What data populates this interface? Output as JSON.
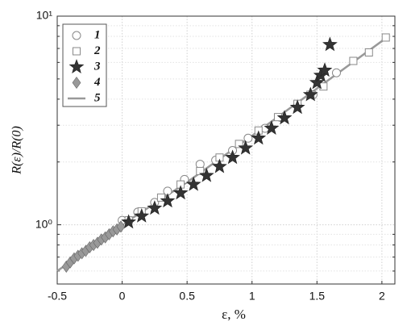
{
  "chart_data": {
    "type": "scatter",
    "x_label": "ε, %",
    "y_label": "R(ε)/R(0)",
    "xlim": [
      -0.5,
      2.1
    ],
    "ylim": [
      0.52,
      10
    ],
    "log_y": true,
    "grid": true,
    "xticks": [
      {
        "value": -0.5,
        "label": "-0.5"
      },
      0,
      0.5,
      1,
      1.5,
      2
    ],
    "yticks": [
      {
        "value": 1,
        "label": "10⁰"
      },
      {
        "value": 10,
        "label": "10¹"
      }
    ],
    "yticks_minor": [
      0.6,
      0.7,
      0.8,
      0.9,
      2,
      3,
      4,
      5,
      6,
      7,
      8,
      9
    ],
    "legend": "upper left",
    "series": [
      {
        "name": "1",
        "marker": "circle",
        "color": "#888888",
        "x": [
          0.0,
          0.12,
          0.25,
          0.35,
          0.48,
          0.6,
          0.72,
          0.85,
          0.97,
          1.1,
          1.22,
          1.35,
          1.47,
          1.65
        ],
        "values": [
          1.05,
          1.15,
          1.28,
          1.45,
          1.65,
          1.95,
          2.04,
          2.27,
          2.6,
          2.9,
          3.27,
          3.74,
          4.2,
          5.35
        ]
      },
      {
        "name": "2",
        "marker": "square",
        "color": "#888888",
        "x": [
          0.05,
          0.15,
          0.3,
          0.45,
          0.6,
          0.75,
          0.9,
          1.05,
          1.2,
          1.35,
          1.45,
          1.55,
          1.78,
          1.9,
          2.03
        ],
        "values": [
          1.05,
          1.16,
          1.35,
          1.56,
          1.81,
          2.1,
          2.44,
          2.83,
          3.28,
          3.8,
          4.2,
          4.6,
          6.1,
          6.7,
          7.9
        ]
      },
      {
        "name": "3",
        "marker": "star",
        "color": "#333333",
        "x": [
          0.05,
          0.15,
          0.25,
          0.35,
          0.45,
          0.55,
          0.65,
          0.75,
          0.85,
          0.95,
          1.05,
          1.15,
          1.25,
          1.35,
          1.45,
          1.5,
          1.53,
          1.56,
          1.6
        ],
        "values": [
          1.03,
          1.1,
          1.2,
          1.3,
          1.42,
          1.56,
          1.72,
          1.9,
          2.1,
          2.33,
          2.6,
          2.9,
          3.25,
          3.65,
          4.2,
          4.8,
          5.2,
          5.5,
          7.3
        ]
      },
      {
        "name": "4",
        "marker": "diamond",
        "color": "#999999",
        "x": [
          -0.43,
          -0.4,
          -0.37,
          -0.34,
          -0.31,
          -0.28,
          -0.25,
          -0.22,
          -0.19,
          -0.16,
          -0.13,
          -0.1,
          -0.07,
          -0.04,
          -0.01
        ],
        "values": [
          0.63,
          0.66,
          0.69,
          0.71,
          0.73,
          0.75,
          0.78,
          0.8,
          0.82,
          0.85,
          0.87,
          0.9,
          0.93,
          0.95,
          0.98
        ]
      },
      {
        "name": "5",
        "marker": "line",
        "color": "#999999",
        "x": [
          -0.5,
          0,
          0.5,
          1,
          1.5,
          2.05
        ],
        "values": [
          0.6,
          1.0,
          1.6,
          2.67,
          4.5,
          8.0
        ]
      }
    ]
  }
}
